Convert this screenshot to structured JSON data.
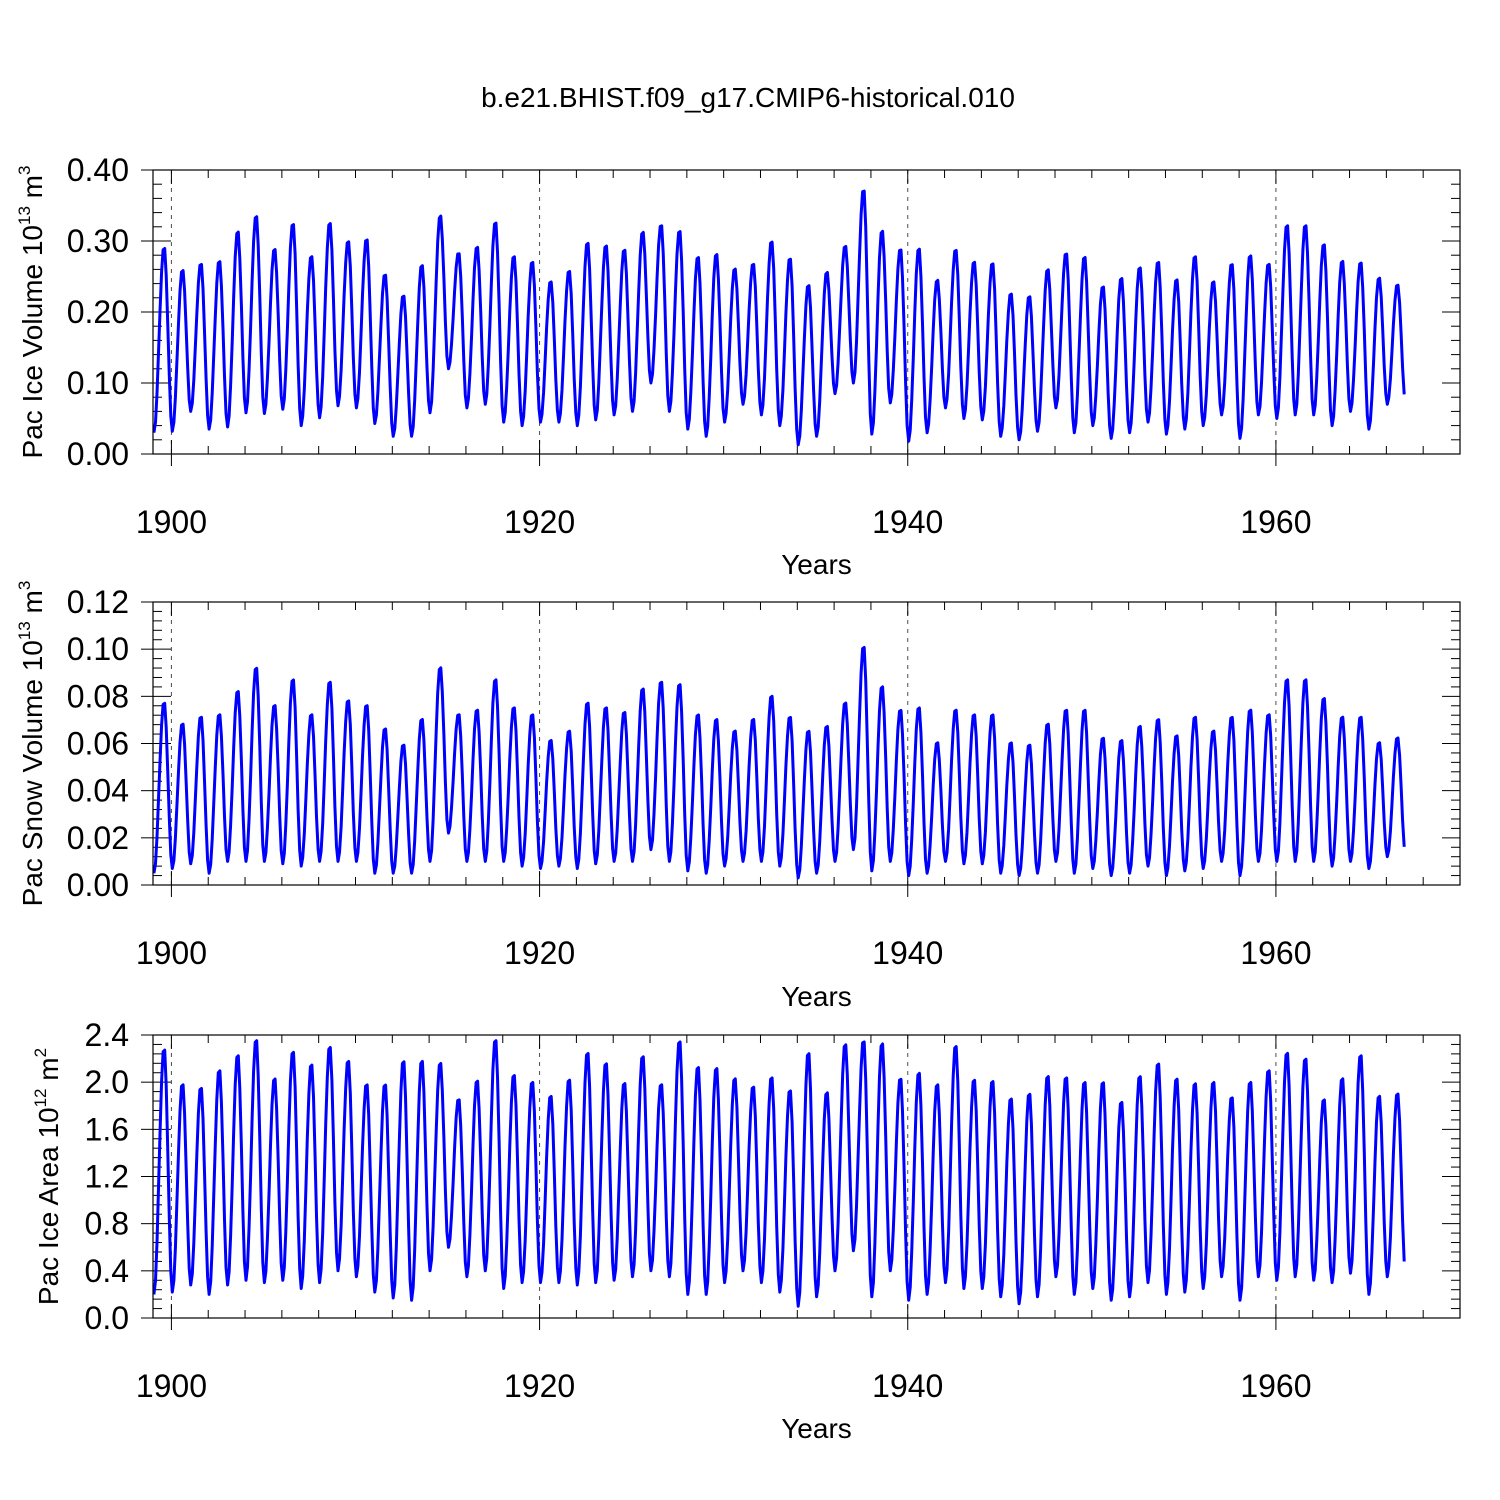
{
  "title": "b.e21.BHIST.f09_g17.CMIP6-historical.010",
  "chart_data": [
    {
      "type": "line",
      "id": "ice-volume",
      "ylabel": {
        "text": "Pac Ice Volume 10",
        "sup": "13",
        "unit": " m",
        "unit_sup": "3"
      },
      "xlabel": "Years",
      "xlim": [
        1899,
        1970
      ],
      "ylim": [
        0,
        0.4
      ],
      "xticks": [
        1900,
        1920,
        1940,
        1960
      ],
      "xtick_labels": [
        "1900",
        "1920",
        "1940",
        "1960"
      ],
      "yticks": [
        0,
        0.1,
        0.2,
        0.3,
        0.4
      ],
      "ytick_labels": [
        "0.00",
        "0.10",
        "0.20",
        "0.30",
        "0.40"
      ],
      "grid_x": [
        1900,
        1920,
        1940,
        1960
      ],
      "color": "#0000ff",
      "series": [
        {
          "name": "Pac Ice Volume",
          "x_start": 1899.0,
          "points_per_year": 12,
          "annual_max": [
            0.293,
            0.261,
            0.27,
            0.274,
            0.316,
            0.338,
            0.291,
            0.327,
            0.281,
            0.328,
            0.302,
            0.305,
            0.255,
            0.225,
            0.268,
            0.338,
            0.285,
            0.294,
            0.329,
            0.281,
            0.273,
            0.245,
            0.26,
            0.3,
            0.296,
            0.29,
            0.315,
            0.325,
            0.317,
            0.28,
            0.284,
            0.263,
            0.27,
            0.302,
            0.278,
            0.24,
            0.258,
            0.295,
            0.375,
            0.317,
            0.291,
            0.292,
            0.247,
            0.29,
            0.273,
            0.271,
            0.228,
            0.224,
            0.262,
            0.285,
            0.28,
            0.238,
            0.25,
            0.265,
            0.273,
            0.248,
            0.281,
            0.245,
            0.27,
            0.282,
            0.27,
            0.325,
            0.325,
            0.298,
            0.274,
            0.272,
            0.25,
            0.24
          ],
          "annual_min": [
            0.03,
            0.032,
            0.06,
            0.035,
            0.038,
            0.058,
            0.057,
            0.063,
            0.04,
            0.051,
            0.068,
            0.065,
            0.043,
            0.025,
            0.025,
            0.058,
            0.12,
            0.065,
            0.07,
            0.045,
            0.04,
            0.045,
            0.045,
            0.04,
            0.048,
            0.055,
            0.06,
            0.1,
            0.06,
            0.035,
            0.025,
            0.045,
            0.07,
            0.055,
            0.04,
            0.013,
            0.025,
            0.085,
            0.1,
            0.028,
            0.072,
            0.018,
            0.03,
            0.065,
            0.05,
            0.048,
            0.025,
            0.02,
            0.032,
            0.065,
            0.03,
            0.04,
            0.022,
            0.03,
            0.045,
            0.028,
            0.035,
            0.04,
            0.055,
            0.022,
            0.055,
            0.05,
            0.055,
            0.055,
            0.04,
            0.06,
            0.035,
            0.07
          ]
        }
      ]
    },
    {
      "type": "line",
      "id": "snow-volume",
      "ylabel": {
        "text": "Pac Snow Volume 10",
        "sup": "13",
        "unit": " m",
        "unit_sup": "3"
      },
      "xlabel": "Years",
      "xlim": [
        1899,
        1970
      ],
      "ylim": [
        0,
        0.12
      ],
      "xticks": [
        1900,
        1920,
        1940,
        1960
      ],
      "xtick_labels": [
        "1900",
        "1920",
        "1940",
        "1960"
      ],
      "yticks": [
        0,
        0.02,
        0.04,
        0.06,
        0.08,
        0.1,
        0.12
      ],
      "ytick_labels": [
        "0.00",
        "0.02",
        "0.04",
        "0.06",
        "0.08",
        "0.10",
        "0.12"
      ],
      "grid_x": [
        1900,
        1920,
        1940,
        1960
      ],
      "color": "#0000ff",
      "series": [
        {
          "name": "Pac Snow Volume",
          "x_start": 1899.0,
          "points_per_year": 12,
          "annual_max": [
            0.078,
            0.069,
            0.072,
            0.073,
            0.083,
            0.093,
            0.077,
            0.088,
            0.073,
            0.087,
            0.079,
            0.077,
            0.067,
            0.06,
            0.071,
            0.093,
            0.073,
            0.075,
            0.088,
            0.076,
            0.073,
            0.062,
            0.066,
            0.078,
            0.076,
            0.074,
            0.084,
            0.087,
            0.086,
            0.073,
            0.071,
            0.066,
            0.071,
            0.081,
            0.072,
            0.066,
            0.068,
            0.078,
            0.102,
            0.085,
            0.075,
            0.076,
            0.061,
            0.075,
            0.073,
            0.073,
            0.061,
            0.06,
            0.069,
            0.075,
            0.075,
            0.063,
            0.062,
            0.068,
            0.071,
            0.064,
            0.072,
            0.066,
            0.072,
            0.075,
            0.073,
            0.088,
            0.088,
            0.08,
            0.072,
            0.072,
            0.061,
            0.063
          ],
          "annual_min": [
            0.005,
            0.007,
            0.009,
            0.005,
            0.01,
            0.01,
            0.01,
            0.009,
            0.008,
            0.01,
            0.01,
            0.01,
            0.005,
            0.005,
            0.005,
            0.01,
            0.022,
            0.01,
            0.01,
            0.01,
            0.008,
            0.007,
            0.008,
            0.007,
            0.009,
            0.01,
            0.01,
            0.015,
            0.01,
            0.006,
            0.005,
            0.008,
            0.01,
            0.01,
            0.008,
            0.003,
            0.005,
            0.01,
            0.015,
            0.006,
            0.01,
            0.004,
            0.005,
            0.01,
            0.009,
            0.009,
            0.005,
            0.004,
            0.005,
            0.01,
            0.005,
            0.007,
            0.004,
            0.005,
            0.008,
            0.004,
            0.006,
            0.007,
            0.01,
            0.004,
            0.01,
            0.01,
            0.01,
            0.01,
            0.008,
            0.01,
            0.007,
            0.012
          ]
        }
      ]
    },
    {
      "type": "line",
      "id": "ice-area",
      "ylabel": {
        "text": "Pac Ice Area 10",
        "sup": "12",
        "unit": " m",
        "unit_sup": "2"
      },
      "xlabel": "Years",
      "xlim": [
        1899,
        1970
      ],
      "ylim": [
        0,
        2.4
      ],
      "xticks": [
        1900,
        1920,
        1940,
        1960
      ],
      "xtick_labels": [
        "1900",
        "1920",
        "1940",
        "1960"
      ],
      "yticks": [
        0,
        0.4,
        0.8,
        1.2,
        1.6,
        2.0,
        2.4
      ],
      "ytick_labels": [
        "0.0",
        "0.4",
        "0.8",
        "1.2",
        "1.6",
        "2.0",
        "2.4"
      ],
      "grid_x": [
        1900,
        1920,
        1940,
        1960
      ],
      "color": "#0000ff",
      "series": [
        {
          "name": "Pac Ice Area",
          "x_start": 1899.0,
          "points_per_year": 12,
          "annual_max": [
            2.3,
            2.0,
            1.97,
            2.12,
            2.25,
            2.38,
            2.05,
            2.28,
            2.17,
            2.32,
            2.2,
            2.0,
            2.0,
            2.2,
            2.2,
            2.18,
            1.87,
            2.03,
            2.38,
            2.08,
            2.02,
            1.9,
            2.04,
            2.27,
            2.18,
            2.01,
            2.24,
            2.0,
            2.37,
            2.15,
            2.14,
            2.05,
            1.98,
            2.06,
            1.95,
            2.27,
            1.93,
            2.34,
            2.37,
            2.35,
            2.05,
            2.1,
            2.0,
            2.33,
            2.04,
            2.03,
            1.88,
            1.92,
            2.07,
            2.06,
            2.02,
            2.02,
            1.85,
            2.07,
            2.18,
            2.05,
            2.01,
            2.02,
            1.89,
            2.02,
            2.12,
            2.27,
            2.22,
            1.87,
            2.05,
            2.25,
            1.9,
            1.92
          ],
          "annual_min": [
            0.2,
            0.22,
            0.28,
            0.2,
            0.28,
            0.32,
            0.3,
            0.32,
            0.25,
            0.3,
            0.4,
            0.35,
            0.22,
            0.17,
            0.15,
            0.4,
            0.6,
            0.35,
            0.4,
            0.25,
            0.3,
            0.3,
            0.3,
            0.28,
            0.3,
            0.32,
            0.35,
            0.4,
            0.35,
            0.2,
            0.2,
            0.3,
            0.4,
            0.3,
            0.22,
            0.1,
            0.18,
            0.4,
            0.57,
            0.18,
            0.4,
            0.15,
            0.2,
            0.3,
            0.25,
            0.25,
            0.18,
            0.12,
            0.18,
            0.35,
            0.2,
            0.25,
            0.15,
            0.18,
            0.3,
            0.2,
            0.22,
            0.25,
            0.35,
            0.15,
            0.35,
            0.32,
            0.35,
            0.32,
            0.3,
            0.38,
            0.2,
            0.35
          ]
        }
      ]
    }
  ]
}
